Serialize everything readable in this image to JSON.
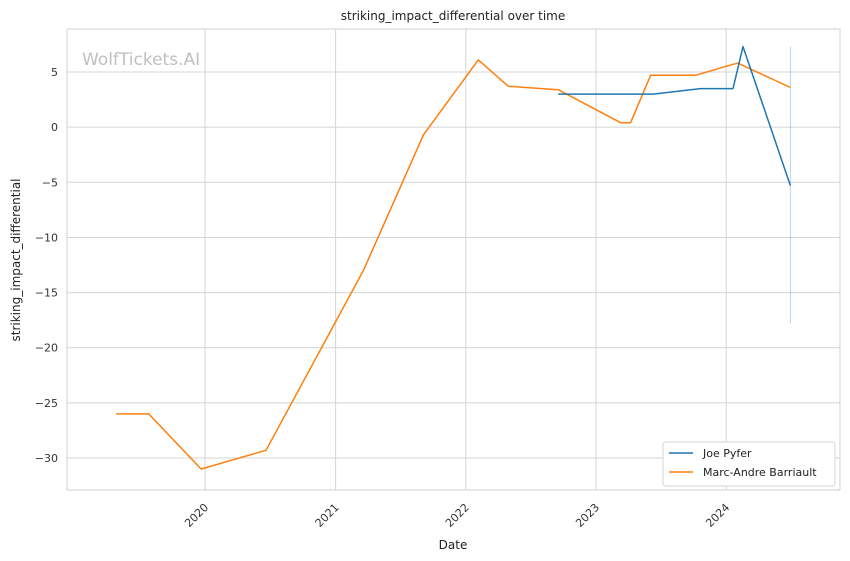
{
  "chart_data": {
    "type": "line",
    "title": "striking_impact_differential over time",
    "xlabel": "Date",
    "ylabel": "striking_impact_differential",
    "watermark": "WolfTickets.AI",
    "x_tick_labels": [
      "2020",
      "2021",
      "2022",
      "2023",
      "2024"
    ],
    "x_ticks": [
      "2020-01-01",
      "2021-01-01",
      "2022-01-01",
      "2023-01-01",
      "2024-01-01"
    ],
    "xlim": [
      "2018-12-10",
      "2024-11-15"
    ],
    "y_ticks": [
      5,
      0,
      -5,
      -10,
      -15,
      -20,
      -25,
      -30
    ],
    "y_tick_labels": [
      "5",
      "0",
      "−5",
      "−10",
      "−15",
      "−20",
      "−25",
      "−30"
    ],
    "ylim": [
      -32.9,
      8.9
    ],
    "grid": true,
    "legend_position": "lower-right",
    "series": [
      {
        "name": "Joe Pyfer",
        "color": "#1f77b4",
        "x": [
          "2022-09-17",
          "2023-06-10",
          "2023-10-21",
          "2024-01-20",
          "2024-02-17",
          "2024-06-29"
        ],
        "y": [
          3.0,
          3.0,
          3.5,
          3.5,
          7.3,
          -5.3
        ]
      },
      {
        "name": "Marc-Andre Barriault",
        "color": "#ff7f0e",
        "x": [
          "2019-04-27",
          "2019-07-27",
          "2019-12-21",
          "2020-06-20",
          "2021-03-20",
          "2021-09-04",
          "2022-02-05",
          "2022-04-30",
          "2022-09-17",
          "2023-03-11",
          "2023-04-08",
          "2023-06-03",
          "2023-10-07",
          "2024-01-20",
          "2024-02-03",
          "2024-06-29"
        ],
        "y": [
          -26.0,
          -26.0,
          -31.0,
          -29.3,
          -13.0,
          -0.7,
          6.1,
          3.7,
          3.4,
          0.4,
          0.4,
          4.7,
          4.7,
          5.7,
          5.8,
          3.6
        ]
      }
    ],
    "error_band": {
      "series": "Joe Pyfer",
      "x": "2024-06-29",
      "range": [
        -17.8,
        7.3
      ]
    }
  }
}
